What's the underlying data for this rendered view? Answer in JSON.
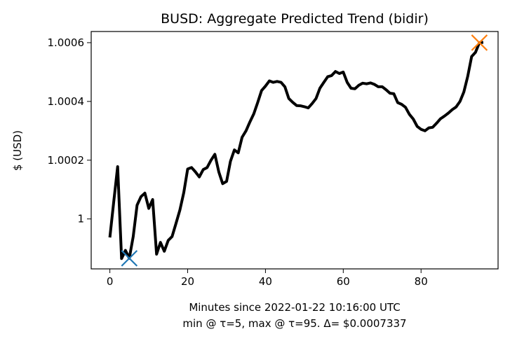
{
  "chart_data": {
    "type": "line",
    "title": "BUSD: Aggregate Predicted Trend (bidir)",
    "xlabel": "Minutes since 2022-01-22 10:16:00 UTC",
    "xlabel_line2": "min @ τ=5, max @ τ=95. Δ= $0.0007337",
    "ylabel": "$ (USD)",
    "xlim": [
      -4.8,
      99.8
    ],
    "ylim": [
      0.99983,
      1.000638
    ],
    "x_ticks": [
      0,
      20,
      40,
      60,
      80
    ],
    "x_tick_labels": [
      "0",
      "20",
      "40",
      "60",
      "80"
    ],
    "y_ticks": [
      1.0,
      1.0002,
      1.0004,
      1.0006
    ],
    "y_tick_labels": [
      "1",
      "1.0002",
      "1.0004",
      "1.0006"
    ],
    "grid": false,
    "series": [
      {
        "color": "#000000",
        "x": [
          0,
          1,
          2,
          3,
          4,
          5,
          6,
          7,
          8,
          9,
          10,
          11,
          12,
          13,
          14,
          15,
          16,
          17,
          18,
          19,
          20,
          21,
          22,
          23,
          24,
          25,
          26,
          27,
          28,
          29,
          30,
          31,
          32,
          33,
          34,
          35,
          36,
          37,
          38,
          39,
          40,
          41,
          42,
          43,
          44,
          45,
          46,
          47,
          48,
          49,
          50,
          51,
          52,
          53,
          54,
          55,
          56,
          57,
          58,
          59,
          60,
          61,
          62,
          63,
          64,
          65,
          66,
          67,
          68,
          69,
          70,
          71,
          72,
          73,
          74,
          75,
          76,
          77,
          78,
          79,
          80,
          81,
          82,
          83,
          84,
          85,
          86,
          87,
          88,
          89,
          90,
          91,
          92,
          93,
          94,
          95,
          96
        ],
        "values": [
          0.999937,
          1.00006,
          1.000178,
          0.999865,
          0.999893,
          0.999866,
          0.99994,
          1.000047,
          1.000076,
          1.000088,
          1.000036,
          1.000066,
          0.99988,
          0.99992,
          0.99989,
          0.999927,
          0.99994,
          0.999985,
          1.00003,
          1.00009,
          1.00017,
          1.000175,
          1.00016,
          1.000143,
          1.000168,
          1.000175,
          1.0002,
          1.00022,
          1.00016,
          1.00012,
          1.000128,
          1.000196,
          1.000235,
          1.000225,
          1.000278,
          1.0003,
          1.00033,
          1.000358,
          1.000396,
          1.000437,
          1.000452,
          1.00047,
          1.000465,
          1.000468,
          1.000465,
          1.00045,
          1.00041,
          1.000397,
          1.000386,
          1.000385,
          1.000382,
          1.000378,
          1.000393,
          1.00041,
          1.000445,
          1.000465,
          1.000484,
          1.000488,
          1.000502,
          1.000495,
          1.0005,
          1.000465,
          1.000445,
          1.000443,
          1.000455,
          1.000462,
          1.00046,
          1.000463,
          1.000458,
          1.00045,
          1.00045,
          1.00044,
          1.000428,
          1.000426,
          1.000396,
          1.00039,
          1.00038,
          1.000356,
          1.00034,
          1.000315,
          1.000305,
          1.0003,
          1.00031,
          1.000312,
          1.000326,
          1.000341,
          1.00035,
          1.00036,
          1.000372,
          1.000381,
          1.0004,
          1.000432,
          1.000485,
          1.000553,
          1.000567,
          1.0006,
          1.000601
        ]
      }
    ],
    "markers": [
      {
        "label": "min",
        "x": 5,
        "y": 0.999866,
        "shape": "x",
        "color": "#1f77b4"
      },
      {
        "label": "max",
        "x": 95,
        "y": 1.0006,
        "shape": "x",
        "color": "#ff7f0e"
      }
    ]
  }
}
